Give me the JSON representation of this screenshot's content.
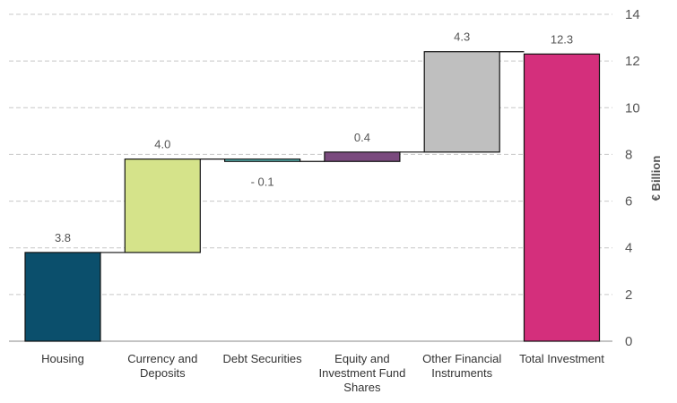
{
  "chart_data": {
    "type": "waterfall",
    "categories": [
      [
        "Housing"
      ],
      [
        "Currency and",
        "Deposits"
      ],
      [
        "Debt Securities"
      ],
      [
        "Equity and",
        "Investment Fund",
        "Shares"
      ],
      [
        "Other Financial",
        "Instruments"
      ],
      [
        "Total Investment"
      ]
    ],
    "values": [
      3.8,
      4.0,
      -0.1,
      0.4,
      4.3,
      12.3
    ],
    "data_labels": [
      "3.8",
      "4.0",
      "- 0.1",
      "0.4",
      "4.3",
      "12.3"
    ],
    "total_index": 5,
    "colors": [
      "#0b4f6c",
      "#d5e38a",
      "#5ec4c0",
      "#7a4a7e",
      "#bfbfbf",
      "#d42f7c"
    ],
    "ylabel": "€ Billion",
    "ylim": [
      0,
      14
    ],
    "yticks": [
      0,
      2,
      4,
      6,
      8,
      10,
      12,
      14
    ],
    "y_axis_position": "right",
    "grid": "horizontal dashed"
  }
}
